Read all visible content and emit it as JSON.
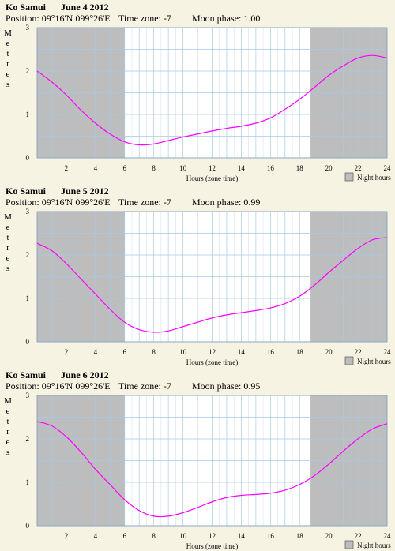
{
  "panels": [
    {
      "place": "Ko Samui",
      "date": "June 4 2012",
      "position_label": "Position:",
      "position": "09°16'N 099°26'E",
      "timezone_label": "Time zone:",
      "timezone": "-7",
      "moon_label": "Moon phase:",
      "moon": "1.00"
    },
    {
      "place": "Ko Samui",
      "date": "June 5 2012",
      "position_label": "Position:",
      "position": "09°16'N 099°26'E",
      "timezone_label": "Time zone:",
      "timezone": "-7",
      "moon_label": "Moon phase:",
      "moon": "0.99"
    },
    {
      "place": "Ko Samui",
      "date": "June 6 2012",
      "position_label": "Position:",
      "position": "09°16'N 099°26'E",
      "timezone_label": "Time zone:",
      "timezone": "-7",
      "moon_label": "Moon phase:",
      "moon": "0.95"
    }
  ],
  "legend_label": "Night hours",
  "colors": {
    "background": "#f7f3e3",
    "night": "#bdbdbd",
    "day": "#ffffff",
    "grid": "#a9c9e8",
    "curve": "#ff00ff"
  },
  "chart_data": [
    {
      "type": "line",
      "ylabel": "Metres",
      "xlabel": "Hours (zone time)",
      "xlim": [
        0,
        24
      ],
      "ylim": [
        0,
        3
      ],
      "xticks": [
        "2",
        "4",
        "6",
        "8",
        "10",
        "12",
        "14",
        "16",
        "18",
        "20",
        "22",
        "24"
      ],
      "yticks": [
        "0",
        "1",
        "2",
        "3"
      ],
      "night_hours": [
        [
          0,
          6
        ],
        [
          18.75,
          24
        ]
      ],
      "series": [
        {
          "x": [
            0,
            1,
            2,
            3,
            4,
            5,
            6,
            7,
            8,
            9,
            10,
            11,
            12,
            13,
            14,
            15,
            16,
            17,
            18,
            19,
            20,
            21,
            22,
            23,
            24
          ],
          "values": [
            2.0,
            1.75,
            1.45,
            1.1,
            0.8,
            0.55,
            0.37,
            0.3,
            0.32,
            0.4,
            0.48,
            0.55,
            0.62,
            0.68,
            0.73,
            0.8,
            0.92,
            1.12,
            1.35,
            1.62,
            1.9,
            2.12,
            2.3,
            2.36,
            2.3
          ]
        }
      ]
    },
    {
      "type": "line",
      "ylabel": "Metres",
      "xlabel": "Hours (zone time)",
      "xlim": [
        0,
        24
      ],
      "ylim": [
        0,
        3
      ],
      "xticks": [
        "2",
        "4",
        "6",
        "8",
        "10",
        "12",
        "14",
        "16",
        "18",
        "20",
        "22",
        "24"
      ],
      "yticks": [
        "0",
        "1",
        "2",
        "3"
      ],
      "night_hours": [
        [
          0,
          6
        ],
        [
          18.75,
          24
        ]
      ],
      "series": [
        {
          "x": [
            0,
            1,
            2,
            3,
            4,
            5,
            6,
            7,
            8,
            9,
            10,
            11,
            12,
            13,
            14,
            15,
            16,
            17,
            18,
            19,
            20,
            21,
            22,
            23,
            24
          ],
          "values": [
            2.27,
            2.1,
            1.8,
            1.45,
            1.1,
            0.75,
            0.45,
            0.28,
            0.22,
            0.25,
            0.35,
            0.45,
            0.55,
            0.62,
            0.67,
            0.72,
            0.78,
            0.88,
            1.05,
            1.3,
            1.6,
            1.88,
            2.15,
            2.35,
            2.4
          ]
        }
      ]
    },
    {
      "type": "line",
      "ylabel": "Metres",
      "xlabel": "Hours (zone time)",
      "xlim": [
        0,
        24
      ],
      "ylim": [
        0,
        3
      ],
      "xticks": [
        "2",
        "4",
        "6",
        "8",
        "10",
        "12",
        "14",
        "16",
        "18",
        "20",
        "22",
        "24"
      ],
      "yticks": [
        "0",
        "1",
        "2",
        "3"
      ],
      "night_hours": [
        [
          0,
          6
        ],
        [
          18.75,
          24
        ]
      ],
      "series": [
        {
          "x": [
            0,
            1,
            2,
            3,
            4,
            5,
            6,
            7,
            8,
            9,
            10,
            11,
            12,
            13,
            14,
            15,
            16,
            17,
            18,
            19,
            20,
            21,
            22,
            23,
            24
          ],
          "values": [
            2.4,
            2.3,
            2.05,
            1.7,
            1.3,
            0.95,
            0.6,
            0.35,
            0.22,
            0.22,
            0.3,
            0.42,
            0.55,
            0.65,
            0.7,
            0.72,
            0.75,
            0.82,
            0.95,
            1.15,
            1.42,
            1.72,
            2.0,
            2.23,
            2.35
          ]
        }
      ]
    }
  ]
}
